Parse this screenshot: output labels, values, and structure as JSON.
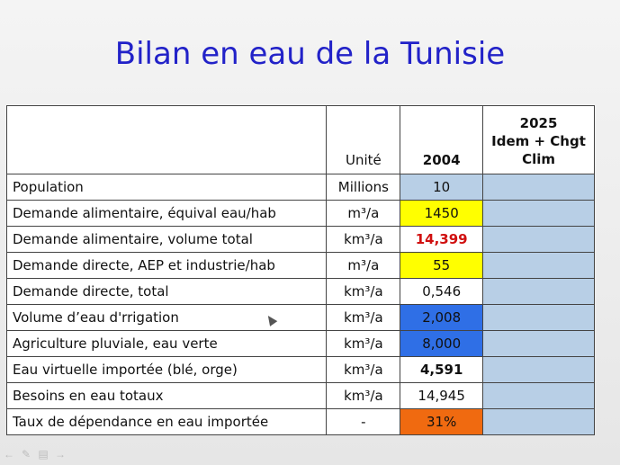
{
  "slide": {
    "title": "Bilan en eau de la Tunisie"
  },
  "table": {
    "header": {
      "col1": "",
      "unit": "Unité",
      "year2004": "2004",
      "col4_line1": "2025",
      "col4_line2": "Idem + Chgt",
      "col4_line3": "Clim"
    },
    "rows": [
      {
        "label": "Population",
        "unit": "Millions",
        "value": "10",
        "value_bg": "light-blue",
        "col4": ""
      },
      {
        "label": "Demande alimentaire, équival eau/hab",
        "unit": "m³/a",
        "value": "1450",
        "value_bg": "yellow",
        "col4": ""
      },
      {
        "label": "Demande alimentaire, volume total",
        "unit": "km³/a",
        "value": "14,399",
        "value_bg": "white",
        "value_style": "red-bold",
        "col4": ""
      },
      {
        "label": "Demande directe, AEP et industrie/hab",
        "unit": "m³/a",
        "value": "55",
        "value_bg": "yellow",
        "col4": ""
      },
      {
        "label": "Demande directe, total",
        "unit": "km³/a",
        "value": "0,546",
        "value_bg": "white",
        "col4": ""
      },
      {
        "label": "Volume d’eau d'rrigation",
        "unit": "km³/a",
        "value": "2,008",
        "value_bg": "blue",
        "col4": ""
      },
      {
        "label": "Agriculture pluviale, eau verte",
        "unit": "km³/a",
        "value": "8,000",
        "value_bg": "blue",
        "col4": ""
      },
      {
        "label": "Eau virtuelle importée (blé, orge)",
        "unit": "km³/a",
        "value": "4,591",
        "value_bg": "white",
        "value_style": "bold",
        "col4": ""
      },
      {
        "label": "Besoins en eau totaux",
        "unit": "km³/a",
        "value": "14,945",
        "value_bg": "white",
        "col4": ""
      },
      {
        "label": "Taux de dépendance en eau importée",
        "unit": "-",
        "value": "31%",
        "value_bg": "orange",
        "col4": ""
      }
    ]
  },
  "colors": {
    "title": "#2222c8",
    "light_blue": "#b8cfe6",
    "yellow": "#ffff00",
    "blue": "#2f6fe6",
    "orange": "#f06a10",
    "red_text": "#d01010"
  },
  "toolbar": {
    "icons": [
      "arrow-left-icon",
      "pen-icon",
      "menu-icon",
      "arrow-right-icon"
    ]
  }
}
